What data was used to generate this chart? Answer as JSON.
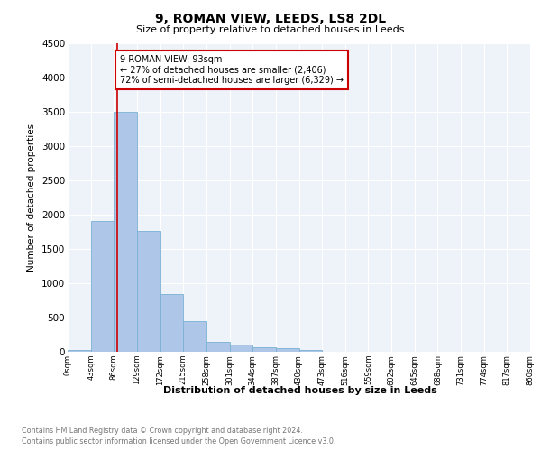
{
  "title": "9, ROMAN VIEW, LEEDS, LS8 2DL",
  "subtitle": "Size of property relative to detached houses in Leeds",
  "xlabel": "Distribution of detached houses by size in Leeds",
  "ylabel": "Number of detached properties",
  "footnote1": "Contains HM Land Registry data © Crown copyright and database right 2024.",
  "footnote2": "Contains public sector information licensed under the Open Government Licence v3.0.",
  "bar_edges": [
    0,
    43,
    86,
    129,
    172,
    215,
    258,
    301,
    344,
    387,
    430,
    473,
    516,
    559,
    602,
    645,
    688,
    731,
    774,
    817,
    860
  ],
  "bar_heights": [
    30,
    1900,
    3500,
    1760,
    840,
    450,
    150,
    100,
    70,
    50,
    30,
    0,
    0,
    0,
    0,
    0,
    0,
    0,
    0,
    0
  ],
  "bar_color": "#aec6e8",
  "bar_edge_color": "#7ab0d4",
  "vline_x": 93,
  "vline_color": "#cc0000",
  "ylim": [
    0,
    4500
  ],
  "annotation_text": "9 ROMAN VIEW: 93sqm\n← 27% of detached houses are smaller (2,406)\n72% of semi-detached houses are larger (6,329) →",
  "annotation_box_color": "#cc0000",
  "annotation_box_facecolor": "white",
  "tick_labels": [
    "0sqm",
    "43sqm",
    "86sqm",
    "129sqm",
    "172sqm",
    "215sqm",
    "258sqm",
    "301sqm",
    "344sqm",
    "387sqm",
    "430sqm",
    "473sqm",
    "516sqm",
    "559sqm",
    "602sqm",
    "645sqm",
    "688sqm",
    "731sqm",
    "774sqm",
    "817sqm",
    "860sqm"
  ],
  "yticks": [
    0,
    500,
    1000,
    1500,
    2000,
    2500,
    3000,
    3500,
    4000,
    4500
  ],
  "plot_bg_color": "#eef2f9"
}
